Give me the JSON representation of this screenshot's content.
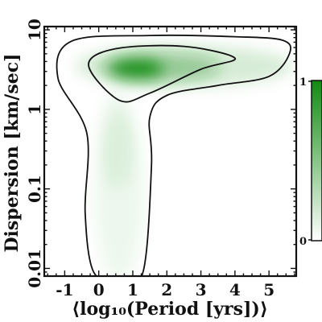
{
  "chart_data": {
    "type": "heatmap",
    "xlabel": "⟨log₁₀(Period [yrs])⟩",
    "ylabel": "Dispersion [km/sec]",
    "x_range": [
      -1.6,
      5.8
    ],
    "y_range": [
      0.008,
      11
    ],
    "y_scale": "log",
    "x_ticks": [
      -1,
      0,
      1,
      2,
      3,
      4,
      5
    ],
    "x_tick_labels": [
      "-1",
      "0",
      "1",
      "2",
      "3",
      "4",
      "5"
    ],
    "y_ticks": [
      0.01,
      0.1,
      1,
      10
    ],
    "y_tick_labels": [
      "0.01",
      "0.1",
      "1",
      "10"
    ],
    "colormap": [
      "#ffffff",
      "#118a11"
    ],
    "colorbar": {
      "min": 0,
      "max": 1,
      "tick_labels": [
        "0",
        "1"
      ],
      "placement": "right"
    },
    "density_peak": {
      "x": 1.1,
      "y": 3.2
    },
    "contours": [
      {
        "level": "outer",
        "points": [
          [
            -0.15,
            0.009
          ],
          [
            -0.4,
            0.05
          ],
          [
            -0.35,
            0.5
          ],
          [
            -1.2,
            2.5
          ],
          [
            -0.8,
            7.2
          ],
          [
            1.5,
            8.5
          ],
          [
            4.0,
            8.2
          ],
          [
            5.4,
            7.4
          ],
          [
            5.6,
            5.0
          ],
          [
            5.0,
            2.6
          ],
          [
            3.5,
            2.0
          ],
          [
            2.0,
            1.5
          ],
          [
            1.5,
            0.8
          ],
          [
            1.55,
            0.2
          ],
          [
            1.3,
            0.009
          ],
          [
            0.6,
            0.007
          ]
        ]
      },
      {
        "level": "inner",
        "points": [
          [
            -0.3,
            3.6
          ],
          [
            0.5,
            5.8
          ],
          [
            2.5,
            6.2
          ],
          [
            4.0,
            4.4
          ],
          [
            3.0,
            3.2
          ],
          [
            1.5,
            1.6
          ],
          [
            0.6,
            1.3
          ]
        ]
      }
    ]
  },
  "colors": {
    "axis": "#111111",
    "contour": "#111111",
    "peak": "#118a11"
  }
}
